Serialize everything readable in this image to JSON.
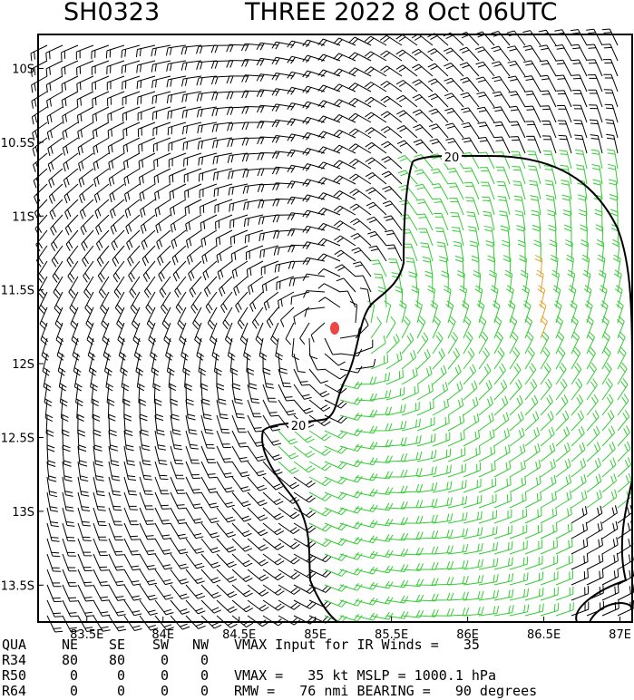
{
  "chart_data": {
    "type": "wind-barb-map",
    "title": "SH0323",
    "subtitle": "THREE 2022  8 Oct 06UTC",
    "xlim": [
      83.18,
      87.08
    ],
    "ylim": [
      -13.75,
      -9.77
    ],
    "xticks": [
      {
        "value": 83.5,
        "label": "83.5E"
      },
      {
        "value": 84,
        "label": "84E"
      },
      {
        "value": 84.5,
        "label": "84.5E"
      },
      {
        "value": 85,
        "label": "85E"
      },
      {
        "value": 85.5,
        "label": "85.5E"
      },
      {
        "value": 86,
        "label": "86E"
      },
      {
        "value": 86.5,
        "label": "86.5E"
      },
      {
        "value": 87,
        "label": "87E"
      }
    ],
    "yticks": [
      {
        "value": -10,
        "label": "10S"
      },
      {
        "value": -10.5,
        "label": "10.5S"
      },
      {
        "value": -11,
        "label": "11S"
      },
      {
        "value": -11.5,
        "label": "11.5S"
      },
      {
        "value": -12,
        "label": "12S"
      },
      {
        "value": -12.5,
        "label": "12.5S"
      },
      {
        "value": -13,
        "label": "13S"
      },
      {
        "value": -13.5,
        "label": "13.5S"
      }
    ],
    "contour_labels": [
      "20",
      "20"
    ],
    "table": {
      "rows": [
        [
          "QUA",
          "NE",
          "SE",
          "SW",
          "NW"
        ],
        [
          "R34",
          "80",
          "80",
          "0",
          "0"
        ],
        [
          "R50",
          "0",
          "0",
          "0",
          "0"
        ],
        [
          "R64",
          "0",
          "0",
          "0",
          "0"
        ]
      ],
      "notes": [
        "VMAX Input for IR Winds =   35",
        "VMAX =   35 kt MSLP = 1000.1 hPa",
        "RMW =   76 nmi BEARING =   90 degrees"
      ]
    }
  }
}
